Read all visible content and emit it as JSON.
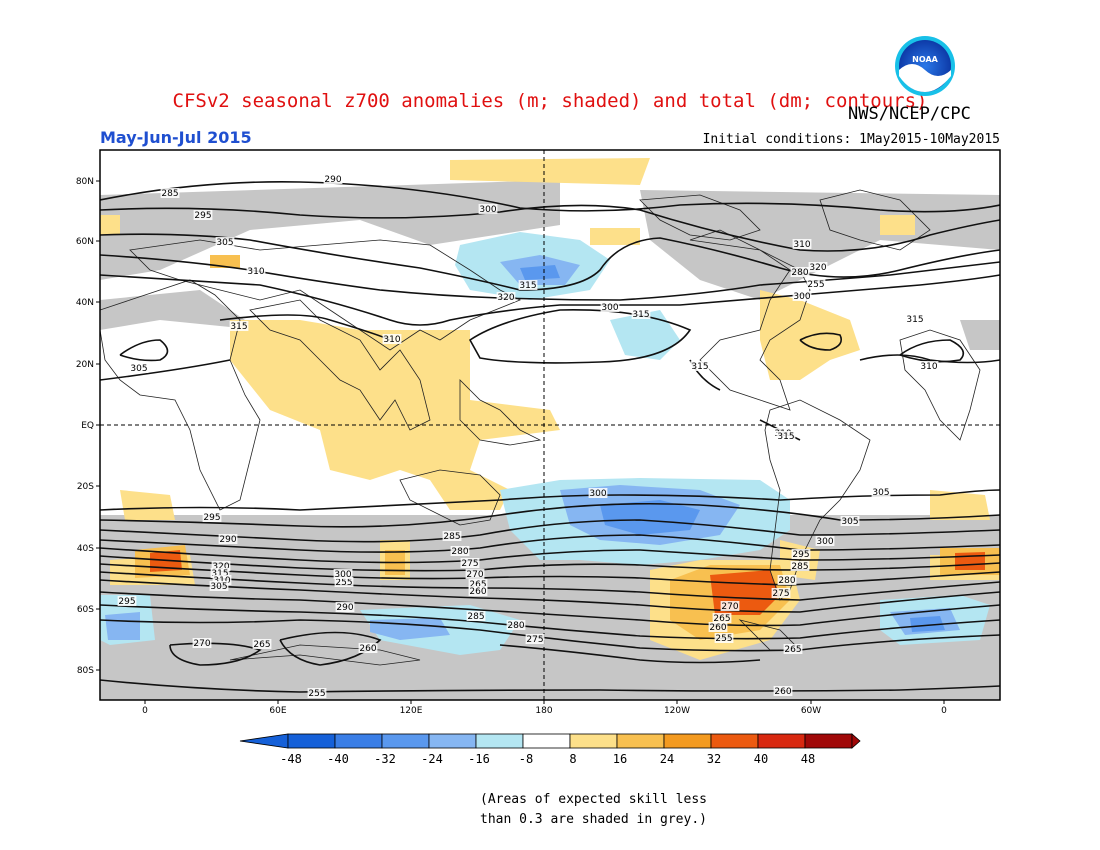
{
  "header": {
    "title": "CFSv2 seasonal z700 anomalies (m; shaded) and total (dm; contours)",
    "org": "NWS/NCEP/CPC",
    "season": "May-Jun-Jul 2015",
    "initial_conditions": "Initial conditions: 1May2015-10May2015",
    "logo_text": "NOAA"
  },
  "axes": {
    "lat_labels": [
      "80N",
      "60N",
      "40N",
      "20N",
      "EQ",
      "20S",
      "40S",
      "60S",
      "80S"
    ],
    "lon_labels": [
      "0",
      "60E",
      "120E",
      "180",
      "120W",
      "60W",
      "0"
    ]
  },
  "contour_labels": [
    "285",
    "290",
    "295",
    "300",
    "305",
    "310",
    "315",
    "320",
    "300",
    "315",
    "310",
    "315",
    "310",
    "305",
    "300",
    "295",
    "290",
    "285",
    "280",
    "275",
    "270",
    "265",
    "260",
    "255",
    "320",
    "315",
    "310",
    "305",
    "300",
    "295",
    "290",
    "285",
    "280",
    "275",
    "270",
    "265",
    "260",
    "255",
    "315",
    "310",
    "305",
    "300",
    "295",
    "285",
    "280",
    "275",
    "270",
    "265",
    "260",
    "255",
    "265",
    "260",
    "280",
    "255",
    "300",
    "305",
    "310",
    "315",
    "320",
    "315"
  ],
  "colorbar": {
    "ticks": [
      "-48",
      "-40",
      "-32",
      "-24",
      "-16",
      "-8",
      "8",
      "16",
      "24",
      "32",
      "40",
      "48"
    ],
    "colors": [
      "#1560d8",
      "#3a7ee6",
      "#5a98ee",
      "#86b6f2",
      "#b4e6f2",
      "#ffffff",
      "#fde08a",
      "#f8c050",
      "#f39a20",
      "#ec5a10",
      "#d82810",
      "#a00808"
    ]
  },
  "colors": {
    "skill_grey": "#c6c6c6",
    "title_red": "#e01010",
    "season_blue": "#1f4fd0"
  },
  "note": {
    "line1": "(Areas of expected skill less",
    "line2": "than 0.3 are shaded in grey.)"
  }
}
